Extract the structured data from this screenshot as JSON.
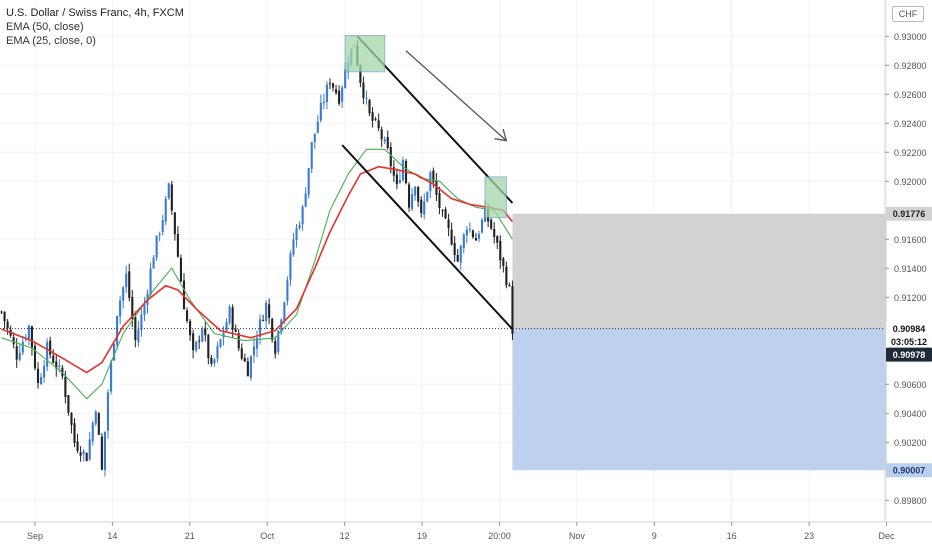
{
  "legend": {
    "title": "U.S. Dollar / Swiss Franc, 4h, FXCM",
    "ema50": "EMA (50, close)",
    "ema25": "EMA (25, close, 0)"
  },
  "currency_badge": "CHF",
  "colors": {
    "up": "#3a7bd5",
    "down": "#222222",
    "ema50": "#4caf50",
    "ema25": "#e8302a",
    "target_zone": "#b9cfee",
    "stop_zone": "#d0d0d0",
    "supply_box": "#a5d6a7",
    "channel": "#111111"
  },
  "chart_data": {
    "type": "candlestick",
    "symbol": "USDCHF",
    "timeframe": "4h",
    "source": "FXCM",
    "y_axis": {
      "ticks": [
        "0.93000",
        "0.92800",
        "0.92600",
        "0.92400",
        "0.92200",
        "0.92000",
        "0.91600",
        "0.91400",
        "0.91200",
        "0.90600",
        "0.90400",
        "0.90200",
        "0.89800"
      ],
      "range": [
        0.8965,
        0.9325
      ]
    },
    "x_axis": {
      "ticks": [
        "Sep",
        "14",
        "21",
        "Oct",
        "12",
        "19",
        "20:00",
        "Nov",
        "9",
        "16",
        "23",
        "Dec"
      ]
    },
    "price_labels": {
      "stop": "0.91776",
      "entry": "0.90984",
      "countdown": "03:05:12",
      "current": "0.90978",
      "target": "0.90007"
    },
    "levels": {
      "stop": 0.91776,
      "entry": 0.90984,
      "current": 0.90978,
      "target": 0.90007
    },
    "price_path": [
      [
        0,
        0.911
      ],
      [
        5,
        0.908
      ],
      [
        9,
        0.91
      ],
      [
        12,
        0.906
      ],
      [
        15,
        0.9085
      ],
      [
        20,
        0.9065
      ],
      [
        24,
        0.902
      ],
      [
        28,
        0.901
      ],
      [
        31,
        0.9045
      ],
      [
        33,
        0.9
      ],
      [
        35,
        0.9055
      ],
      [
        38,
        0.911
      ],
      [
        41,
        0.9135
      ],
      [
        44,
        0.909
      ],
      [
        47,
        0.9115
      ],
      [
        50,
        0.915
      ],
      [
        53,
        0.9175
      ],
      [
        55,
        0.9195
      ],
      [
        57,
        0.9165
      ],
      [
        60,
        0.9115
      ],
      [
        63,
        0.908
      ],
      [
        66,
        0.91
      ],
      [
        69,
        0.907
      ],
      [
        72,
        0.909
      ],
      [
        75,
        0.911
      ],
      [
        78,
        0.9085
      ],
      [
        81,
        0.907
      ],
      [
        84,
        0.9095
      ],
      [
        87,
        0.9115
      ],
      [
        90,
        0.9085
      ],
      [
        93,
        0.912
      ],
      [
        96,
        0.916
      ],
      [
        99,
        0.918
      ],
      [
        102,
        0.9225
      ],
      [
        105,
        0.925
      ],
      [
        108,
        0.927
      ],
      [
        111,
        0.9258
      ],
      [
        114,
        0.9285
      ],
      [
        116,
        0.9295
      ],
      [
        118,
        0.927
      ],
      [
        121,
        0.9245
      ],
      [
        124,
        0.9235
      ],
      [
        127,
        0.922
      ],
      [
        130,
        0.9195
      ],
      [
        132,
        0.9215
      ],
      [
        134,
        0.9185
      ],
      [
        136,
        0.92
      ],
      [
        138,
        0.9175
      ],
      [
        141,
        0.9205
      ],
      [
        143,
        0.919
      ],
      [
        145,
        0.9175
      ],
      [
        148,
        0.916
      ],
      [
        150,
        0.9145
      ],
      [
        153,
        0.917
      ],
      [
        156,
        0.916
      ],
      [
        159,
        0.9178
      ],
      [
        161,
        0.9168
      ],
      [
        163,
        0.9155
      ],
      [
        165,
        0.914
      ],
      [
        167,
        0.9125
      ],
      [
        168,
        0.9098
      ]
    ],
    "ema50_path": [
      [
        0,
        0.9092
      ],
      [
        10,
        0.9085
      ],
      [
        20,
        0.9068
      ],
      [
        28,
        0.905
      ],
      [
        33,
        0.906
      ],
      [
        40,
        0.9095
      ],
      [
        50,
        0.9125
      ],
      [
        56,
        0.914
      ],
      [
        62,
        0.9118
      ],
      [
        70,
        0.9095
      ],
      [
        80,
        0.909
      ],
      [
        90,
        0.9092
      ],
      [
        97,
        0.9108
      ],
      [
        103,
        0.9145
      ],
      [
        108,
        0.918
      ],
      [
        114,
        0.9205
      ],
      [
        120,
        0.9222
      ],
      [
        126,
        0.9222
      ],
      [
        132,
        0.921
      ],
      [
        138,
        0.9202
      ],
      [
        144,
        0.92
      ],
      [
        150,
        0.9188
      ],
      [
        156,
        0.9182
      ],
      [
        162,
        0.918
      ],
      [
        168,
        0.916
      ]
    ],
    "ema25_path": [
      [
        0,
        0.9098
      ],
      [
        10,
        0.909
      ],
      [
        20,
        0.9078
      ],
      [
        28,
        0.9068
      ],
      [
        33,
        0.9075
      ],
      [
        40,
        0.91
      ],
      [
        48,
        0.9118
      ],
      [
        54,
        0.9128
      ],
      [
        58,
        0.9125
      ],
      [
        64,
        0.9112
      ],
      [
        72,
        0.9097
      ],
      [
        82,
        0.9092
      ],
      [
        90,
        0.9097
      ],
      [
        97,
        0.9112
      ],
      [
        103,
        0.914
      ],
      [
        108,
        0.9165
      ],
      [
        114,
        0.919
      ],
      [
        118,
        0.9205
      ],
      [
        124,
        0.921
      ],
      [
        130,
        0.9208
      ],
      [
        136,
        0.9205
      ],
      [
        142,
        0.9198
      ],
      [
        148,
        0.9188
      ],
      [
        154,
        0.9184
      ],
      [
        160,
        0.9182
      ],
      [
        165,
        0.918
      ],
      [
        168,
        0.9172
      ]
    ],
    "trendlines": [
      [
        [
          112,
          0.9225
        ],
        [
          168,
          0.9098
        ]
      ],
      [
        [
          117,
          0.93
        ],
        [
          168,
          0.9185
        ]
      ],
      [
        [
          133,
          0.929
        ],
        [
          166,
          0.9228
        ]
      ]
    ],
    "boxes": [
      [
        [
          113,
          0.93005
        ],
        [
          126,
          0.92755
        ]
      ],
      [
        [
          159,
          0.9203
        ],
        [
          166,
          0.9175
        ]
      ]
    ],
    "position_box": {
      "x_start": 168,
      "x_end": 291
    },
    "extent": {
      "bars": 291
    }
  }
}
